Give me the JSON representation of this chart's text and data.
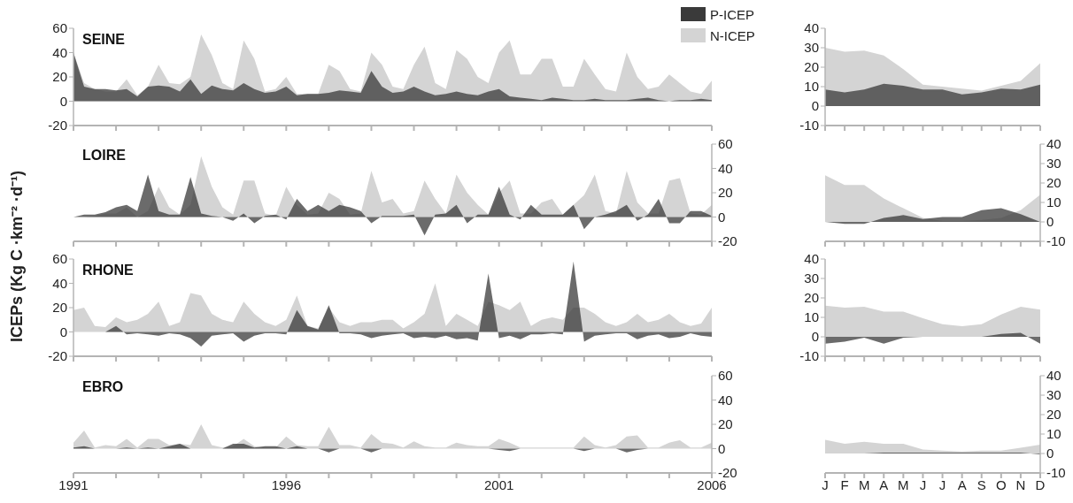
{
  "chart_data": [
    {
      "type": "area",
      "title": "SEINE",
      "ylabel": "ICEPs (Kg C ·km⁻² ·d⁻¹)",
      "legend": "top right",
      "tick_labels": "y",
      "x": [
        1991,
        1991.25,
        1991.5,
        1991.75,
        1992,
        1992.25,
        1992.5,
        1992.75,
        1993,
        1993.25,
        1993.5,
        1993.75,
        1994,
        1994.25,
        1994.5,
        1994.75,
        1995,
        1995.25,
        1995.5,
        1995.75,
        1996,
        1996.25,
        1996.5,
        1996.75,
        1997,
        1997.25,
        1997.5,
        1997.75,
        1998,
        1998.25,
        1998.5,
        1998.75,
        1999,
        1999.25,
        1999.5,
        1999.75,
        2000,
        2000.25,
        2000.5,
        2000.75,
        2001,
        2001.25,
        2001.5,
        2001.75,
        2002,
        2002.25,
        2002.5,
        2002.75,
        2003,
        2003.25,
        2003.5,
        2003.75,
        2004,
        2004.25,
        2004.5,
        2004.75,
        2005,
        2005.25,
        2005.5,
        2005.75,
        2006
      ],
      "ylim": [
        -20,
        60
      ],
      "yticks": [
        -20,
        0,
        20,
        40,
        60
      ],
      "xlim": [
        1991,
        2006
      ],
      "xticks": [
        1991,
        {
          "value": 1992,
          "label": null
        },
        {
          "value": 1993,
          "label": null
        },
        {
          "value": 1994,
          "label": null
        },
        {
          "value": 1995,
          "label": null
        },
        1996,
        {
          "value": 1997,
          "label": null
        },
        {
          "value": 1998,
          "label": null
        },
        {
          "value": 1999,
          "label": null
        },
        {
          "value": 2000,
          "label": null
        },
        2001,
        {
          "value": 2002,
          "label": null
        },
        {
          "value": 2003,
          "label": null
        },
        {
          "value": 2004,
          "label": null
        },
        {
          "value": 2005,
          "label": null
        },
        2006
      ],
      "series": [
        {
          "name": "N-ICEP",
          "color": "#d4d4d4",
          "values": [
            40,
            15,
            10,
            8,
            8,
            18,
            5,
            12,
            30,
            15,
            14,
            20,
            55,
            38,
            15,
            10,
            50,
            35,
            8,
            10,
            20,
            6,
            6,
            6,
            30,
            25,
            10,
            8,
            40,
            30,
            12,
            10,
            30,
            45,
            15,
            10,
            42,
            35,
            20,
            15,
            40,
            50,
            22,
            22,
            35,
            35,
            12,
            12,
            35,
            22,
            10,
            8,
            40,
            20,
            10,
            12,
            22,
            15,
            8,
            6,
            17
          ]
        },
        {
          "name": "P-ICEP",
          "color": "#3a3a3a",
          "values": [
            40,
            12,
            10,
            10,
            9,
            10,
            4,
            12,
            13,
            12,
            8,
            18,
            6,
            13,
            10,
            9,
            15,
            10,
            7,
            8,
            12,
            5,
            6,
            6,
            7,
            9,
            8,
            7,
            25,
            12,
            7,
            8,
            12,
            8,
            5,
            6,
            8,
            6,
            5,
            8,
            10,
            4,
            3,
            2,
            1,
            3,
            2,
            1,
            1,
            2,
            1,
            1,
            1,
            2,
            3,
            1,
            0,
            1,
            1,
            2,
            1
          ]
        }
      ]
    },
    {
      "type": "area",
      "categories": [
        null,
        null,
        null,
        null,
        null,
        null,
        null,
        null,
        null,
        null,
        null,
        null
      ],
      "ylim": [
        -10,
        40
      ],
      "yticks": [
        -10,
        0,
        10,
        20,
        30,
        40
      ],
      "tick_labels": "y",
      "series": [
        {
          "color": "#d4d4d4",
          "values": [
            30,
            28,
            28.5,
            26,
            19,
            11,
            10,
            9,
            8,
            10.5,
            13,
            22
          ]
        },
        {
          "color": "#3a3a3a",
          "values": [
            8.5,
            7,
            8.5,
            11.5,
            10.5,
            8.5,
            8.5,
            6,
            7,
            9,
            8.5,
            11
          ]
        }
      ]
    },
    {
      "type": "area",
      "title": "LOIRE",
      "tick_labels": "y",
      "x": [
        1991,
        1991.25,
        1991.5,
        1991.75,
        1992,
        1992.25,
        1992.5,
        1992.75,
        1993,
        1993.25,
        1993.5,
        1993.75,
        1994,
        1994.25,
        1994.5,
        1994.75,
        1995,
        1995.25,
        1995.5,
        1995.75,
        1996,
        1996.25,
        1996.5,
        1996.75,
        1997,
        1997.25,
        1997.5,
        1997.75,
        1998,
        1998.25,
        1998.5,
        1998.75,
        1999,
        1999.25,
        1999.5,
        1999.75,
        2000,
        2000.25,
        2000.5,
        2000.75,
        2001,
        2001.25,
        2001.5,
        2001.75,
        2002,
        2002.25,
        2002.5,
        2002.75,
        2003,
        2003.25,
        2003.5,
        2003.75,
        2004,
        2004.25,
        2004.5,
        2004.75,
        2005,
        2005.25,
        2005.5,
        2005.75,
        2006
      ],
      "ylim": [
        -20,
        60
      ],
      "yticks": [
        -20,
        0,
        20,
        40,
        60
      ],
      "xlim": [
        1991,
        2006
      ],
      "xticks": [
        1991,
        {
          "value": 1992,
          "label": null
        },
        {
          "value": 1993,
          "label": null
        },
        {
          "value": 1994,
          "label": null
        },
        {
          "value": 1995,
          "label": null
        },
        1996,
        {
          "value": 1997,
          "label": null
        },
        {
          "value": 1998,
          "label": null
        },
        {
          "value": 1999,
          "label": null
        },
        {
          "value": 2000,
          "label": null
        },
        2001,
        {
          "value": 2002,
          "label": null
        },
        {
          "value": 2003,
          "label": null
        },
        {
          "value": 2004,
          "label": null
        },
        {
          "value": 2005,
          "label": null
        },
        2006
      ],
      "series": [
        {
          "color": "#d4d4d4",
          "values": [
            0,
            0,
            1,
            3,
            3,
            8,
            0,
            5,
            25,
            8,
            2,
            10,
            50,
            25,
            8,
            2,
            30,
            30,
            3,
            1,
            25,
            10,
            2,
            3,
            20,
            15,
            2,
            3,
            38,
            12,
            15,
            3,
            5,
            30,
            15,
            3,
            35,
            20,
            10,
            2,
            20,
            30,
            3,
            3,
            12,
            15,
            2,
            10,
            18,
            35,
            5,
            3,
            38,
            12,
            3,
            3,
            30,
            32,
            3,
            2,
            10
          ]
        },
        {
          "color": "#3a3a3a",
          "values": [
            0,
            2,
            2,
            4,
            8,
            10,
            5,
            35,
            5,
            2,
            2,
            33,
            3,
            1,
            0,
            -3,
            3,
            -5,
            1,
            2,
            -2,
            15,
            5,
            10,
            5,
            10,
            8,
            5,
            -5,
            1,
            1,
            1,
            2,
            -15,
            2,
            3,
            10,
            -5,
            2,
            2,
            25,
            2,
            -2,
            10,
            2,
            2,
            2,
            10,
            -10,
            0,
            2,
            5,
            10,
            -3,
            2,
            15,
            -5,
            -5,
            5,
            5,
            1
          ]
        }
      ]
    },
    {
      "type": "area",
      "categories": [
        null,
        null,
        null,
        null,
        null,
        null,
        null,
        null,
        null,
        null,
        null,
        null
      ],
      "ylim": [
        -10,
        40
      ],
      "yticks": [
        -10,
        0,
        10,
        20,
        30,
        40
      ],
      "tick_labels": "y",
      "series": [
        {
          "color": "#d4d4d4",
          "values": [
            24,
            19,
            19,
            12,
            7,
            2,
            0.5,
            0.5,
            1,
            2,
            6,
            14
          ]
        },
        {
          "color": "#3a3a3a",
          "values": [
            0,
            -1,
            -1,
            2,
            3.5,
            1.5,
            2.5,
            2.5,
            6,
            7,
            4,
            0
          ]
        }
      ]
    },
    {
      "type": "area",
      "title": "RHONE",
      "tick_labels": "y",
      "x": [
        1991,
        1991.25,
        1991.5,
        1991.75,
        1992,
        1992.25,
        1992.5,
        1992.75,
        1993,
        1993.25,
        1993.5,
        1993.75,
        1994,
        1994.25,
        1994.5,
        1994.75,
        1995,
        1995.25,
        1995.5,
        1995.75,
        1996,
        1996.25,
        1996.5,
        1996.75,
        1997,
        1997.25,
        1997.5,
        1997.75,
        1998,
        1998.25,
        1998.5,
        1998.75,
        1999,
        1999.25,
        1999.5,
        1999.75,
        2000,
        2000.25,
        2000.5,
        2000.75,
        2001,
        2001.25,
        2001.5,
        2001.75,
        2002,
        2002.25,
        2002.5,
        2002.75,
        2003,
        2003.25,
        2003.5,
        2003.75,
        2004,
        2004.25,
        2004.5,
        2004.75,
        2005,
        2005.25,
        2005.5,
        2005.75,
        2006
      ],
      "ylim": [
        -20,
        60
      ],
      "yticks": [
        -20,
        0,
        20,
        40,
        60
      ],
      "xlim": [
        1991,
        2006
      ],
      "xticks": [
        1991,
        {
          "value": 1992,
          "label": null
        },
        {
          "value": 1993,
          "label": null
        },
        {
          "value": 1994,
          "label": null
        },
        {
          "value": 1995,
          "label": null
        },
        1996,
        {
          "value": 1997,
          "label": null
        },
        {
          "value": 1998,
          "label": null
        },
        {
          "value": 1999,
          "label": null
        },
        {
          "value": 2000,
          "label": null
        },
        2001,
        {
          "value": 2002,
          "label": null
        },
        {
          "value": 2003,
          "label": null
        },
        {
          "value": 2004,
          "label": null
        },
        {
          "value": 2005,
          "label": null
        },
        2006
      ],
      "series": [
        {
          "color": "#d4d4d4",
          "values": [
            18,
            20,
            5,
            4,
            12,
            8,
            10,
            15,
            25,
            5,
            8,
            32,
            30,
            15,
            10,
            8,
            25,
            15,
            8,
            5,
            10,
            30,
            5,
            3,
            20,
            8,
            5,
            8,
            8,
            10,
            10,
            3,
            8,
            15,
            40,
            5,
            15,
            10,
            5,
            25,
            22,
            18,
            25,
            5,
            10,
            12,
            10,
            20,
            20,
            15,
            8,
            5,
            8,
            15,
            8,
            10,
            15,
            8,
            5,
            7,
            20
          ]
        },
        {
          "color": "#3a3a3a",
          "values": [
            0,
            0,
            0,
            0,
            5,
            -2,
            -1,
            -2,
            -3,
            -1,
            -2,
            -5,
            -12,
            -3,
            -2,
            -1,
            -8,
            -3,
            -1,
            -1,
            -2,
            18,
            5,
            2,
            22,
            -1,
            -1,
            -2,
            -5,
            -3,
            -2,
            -1,
            -5,
            -4,
            -5,
            -3,
            -6,
            -5,
            -7,
            48,
            -5,
            -3,
            -6,
            -2,
            -2,
            -1,
            -2,
            58,
            -8,
            -3,
            -2,
            -1,
            -1,
            -6,
            -3,
            -2,
            -5,
            -4,
            -1,
            -3,
            -4
          ]
        }
      ]
    },
    {
      "type": "area",
      "categories": [
        null,
        null,
        null,
        null,
        null,
        null,
        null,
        null,
        null,
        null,
        null,
        null
      ],
      "ylim": [
        -10,
        40
      ],
      "yticks": [
        -10,
        0,
        10,
        20,
        30,
        40
      ],
      "tick_labels": "y",
      "series": [
        {
          "color": "#d4d4d4",
          "values": [
            16,
            15,
            15.5,
            13,
            13,
            9.5,
            6.5,
            5.5,
            6.5,
            11.5,
            15.5,
            14
          ]
        },
        {
          "color": "#3a3a3a",
          "values": [
            -3.5,
            -2.5,
            -0.5,
            -3.5,
            -0.5,
            0,
            0,
            0,
            0,
            1.5,
            2,
            -3.5
          ]
        }
      ]
    },
    {
      "type": "area",
      "title": "EBRO",
      "x": [
        1991,
        1991.25,
        1991.5,
        1991.75,
        1992,
        1992.25,
        1992.5,
        1992.75,
        1993,
        1993.25,
        1993.5,
        1993.75,
        1994,
        1994.25,
        1994.5,
        1994.75,
        1995,
        1995.25,
        1995.5,
        1995.75,
        1996,
        1996.25,
        1996.5,
        1996.75,
        1997,
        1997.25,
        1997.5,
        1997.75,
        1998,
        1998.25,
        1998.5,
        1998.75,
        1999,
        1999.25,
        1999.5,
        1999.75,
        2000,
        2000.25,
        2000.5,
        2000.75,
        2001,
        2001.25,
        2001.5,
        2001.75,
        2002,
        2002.25,
        2002.5,
        2002.75,
        2003,
        2003.25,
        2003.5,
        2003.75,
        2004,
        2004.25,
        2004.5,
        2004.75,
        2005,
        2005.25,
        2005.5,
        2005.75,
        2006
      ],
      "ylim": [
        -20,
        60
      ],
      "yticks": [
        -20,
        0,
        20,
        40,
        60
      ],
      "xlim": [
        1991,
        2006
      ],
      "xticks": [
        1991,
        {
          "value": 1992,
          "label": null
        },
        {
          "value": 1993,
          "label": null
        },
        {
          "value": 1994,
          "label": null
        },
        {
          "value": 1995,
          "label": null
        },
        1996,
        {
          "value": 1997,
          "label": null
        },
        {
          "value": 1998,
          "label": null
        },
        {
          "value": 1999,
          "label": null
        },
        {
          "value": 2000,
          "label": null
        },
        2001,
        {
          "value": 2002,
          "label": null
        },
        {
          "value": 2003,
          "label": null
        },
        {
          "value": 2004,
          "label": null
        },
        {
          "value": 2005,
          "label": null
        },
        2006
      ],
      "series": [
        {
          "color": "#d4d4d4",
          "values": [
            5,
            15,
            1,
            3,
            2,
            8,
            1,
            8,
            8,
            3,
            4,
            3,
            20,
            3,
            1,
            2,
            8,
            2,
            1,
            1,
            10,
            3,
            2,
            2,
            18,
            3,
            3,
            1,
            12,
            5,
            4,
            1,
            6,
            2,
            1,
            1,
            5,
            3,
            2,
            2,
            8,
            5,
            1,
            1,
            1,
            1,
            1,
            1,
            10,
            3,
            1,
            3,
            10,
            11,
            1,
            1,
            5,
            7,
            1,
            1,
            5
          ]
        },
        {
          "color": "#3a3a3a",
          "values": [
            1,
            2,
            0,
            0,
            0,
            1,
            0,
            1,
            0,
            2,
            4,
            0,
            0,
            0,
            0,
            4,
            4,
            1,
            2,
            2,
            0,
            2,
            0,
            0,
            -3,
            0,
            0,
            0,
            -3,
            0,
            0,
            0,
            0,
            0,
            0,
            0,
            0,
            0,
            0,
            0,
            -1,
            -2,
            0,
            0,
            0,
            0,
            0,
            0,
            -2,
            0,
            0,
            0,
            -3,
            -1,
            0,
            0,
            0,
            0,
            0,
            0,
            0
          ]
        }
      ]
    },
    {
      "type": "area",
      "categories": [
        "J",
        "F",
        "M",
        "A",
        "M",
        "J",
        "J",
        "A",
        "S",
        "O",
        "N",
        "D"
      ],
      "ylim": [
        -10,
        40
      ],
      "yticks": [
        -10,
        0,
        10,
        20,
        30,
        40
      ],
      "series": [
        {
          "color": "#d4d4d4",
          "values": [
            7,
            5,
            6,
            5,
            5,
            2,
            1.5,
            1,
            1.5,
            1.5,
            3,
            4.5
          ]
        },
        {
          "color": "#3a3a3a",
          "values": [
            0,
            0,
            0,
            0.5,
            0.5,
            0.5,
            0.5,
            0.5,
            0.5,
            0.5,
            0.5,
            -0.5
          ]
        }
      ]
    }
  ]
}
